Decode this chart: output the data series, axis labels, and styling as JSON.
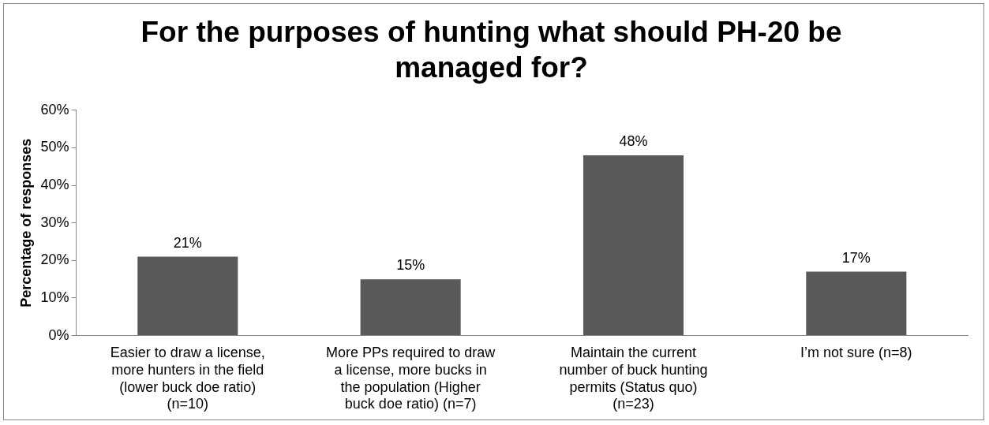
{
  "chart_data": {
    "type": "bar",
    "title": "For the purposes of hunting what should PH-20 be managed for?",
    "ylabel": "Percentage of responses",
    "categories": [
      "Easier to draw a license, more hunters in the field (lower buck doe ratio) (n=10)",
      "More PPs required to draw a license, more bucks in the population (Higher buck doe ratio) (n=7)",
      "Maintain the current number of buck hunting permits (Status quo) (n=23)",
      "I’m not sure (n=8)"
    ],
    "values": [
      21,
      15,
      48,
      17
    ],
    "value_labels": [
      "21%",
      "15%",
      "48%",
      "17%"
    ],
    "color": "#595959",
    "ylim": [
      0,
      60
    ],
    "yticks": [
      {
        "value": 0,
        "label": "0%"
      },
      {
        "value": 10,
        "label": "10%"
      },
      {
        "value": 20,
        "label": "20%"
      },
      {
        "value": 30,
        "label": "30%"
      },
      {
        "value": 40,
        "label": "40%"
      },
      {
        "value": 50,
        "label": "50%"
      },
      {
        "value": 60,
        "label": "60%"
      }
    ],
    "grid": false,
    "legend": false
  }
}
